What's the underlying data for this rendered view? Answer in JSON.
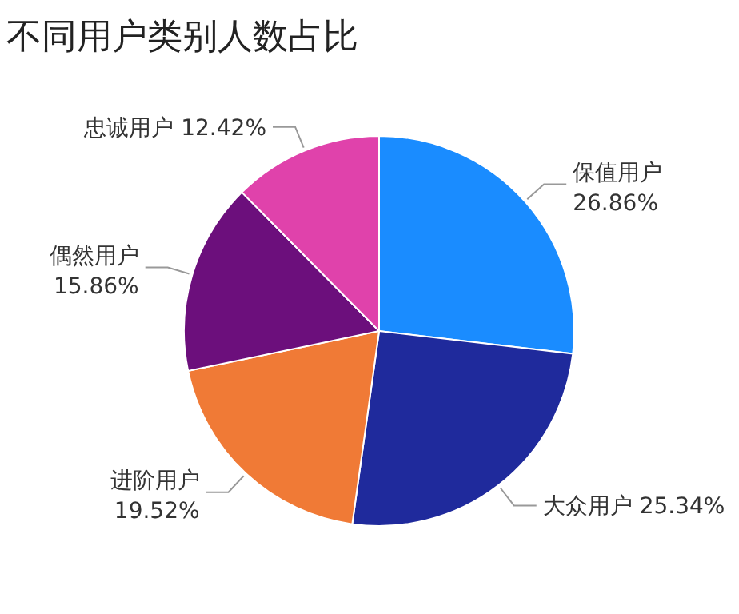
{
  "chart_data": {
    "type": "pie",
    "title": "不同用户类别人数占比",
    "categories": [
      "保值用户",
      "大众用户",
      "进阶用户",
      "偶然用户",
      "忠诚用户"
    ],
    "values": [
      26.86,
      25.34,
      19.52,
      15.86,
      12.42
    ],
    "colors": [
      "#1a8cff",
      "#1f2a9c",
      "#f07a36",
      "#6c0f7c",
      "#e042ab"
    ],
    "value_labels": [
      "26.86%",
      "25.34%",
      "19.52%",
      "15.86%",
      "12.42%"
    ]
  }
}
